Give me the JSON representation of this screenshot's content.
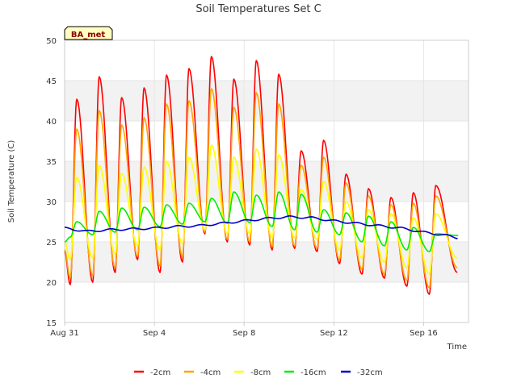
{
  "chart_data": {
    "type": "line",
    "title": "Soil Temperatures Set C",
    "xlabel": "Time",
    "ylabel": "Soil Temperature (C)",
    "badge": "BA_met",
    "ylim": [
      15,
      50
    ],
    "xlim": [
      "2023-08-31",
      "2023-09-18"
    ],
    "yticks": [
      15,
      20,
      25,
      30,
      35,
      40,
      45,
      50
    ],
    "xticks": [
      {
        "date": "2023-08-31",
        "label": "Aug 31"
      },
      {
        "date": "2023-09-04",
        "label": "Sep 4"
      },
      {
        "date": "2023-09-08",
        "label": "Sep 8"
      },
      {
        "date": "2023-09-12",
        "label": "Sep 12"
      },
      {
        "date": "2023-09-16",
        "label": "Sep 16"
      }
    ],
    "grid": true,
    "legend_position": "bottom",
    "start": "2023-08-31",
    "peak_time_of_day_hours": 13,
    "trough_time_of_day_hours": 6,
    "series": [
      {
        "name": "-2cm",
        "color": "#ff0000",
        "daily_max": [
          42.7,
          45.5,
          42.9,
          44.1,
          45.7,
          46.5,
          48.0,
          45.2,
          47.5,
          45.8,
          36.3,
          37.6,
          33.4,
          31.6,
          30.5,
          31.1,
          32.0
        ],
        "daily_min": [
          23.8,
          19.7,
          20.0,
          21.2,
          22.8,
          21.2,
          22.5,
          26.0,
          25.0,
          24.6,
          24.0,
          24.2,
          23.8,
          22.3,
          21.0,
          20.5,
          19.5,
          18.5,
          21.2
        ]
      },
      {
        "name": "-4cm",
        "color": "#ffa500",
        "daily_max": [
          39.0,
          41.3,
          39.5,
          40.4,
          42.1,
          42.5,
          44.0,
          41.7,
          43.5,
          42.1,
          34.5,
          35.5,
          32.3,
          30.7,
          29.6,
          29.8,
          30.7
        ],
        "daily_min": [
          24.0,
          20.5,
          20.8,
          21.8,
          23.2,
          22.0,
          23.2,
          26.2,
          25.3,
          25.0,
          24.4,
          24.5,
          24.2,
          22.8,
          21.6,
          21.0,
          20.2,
          19.3,
          21.8
        ]
      },
      {
        "name": "-8cm",
        "color": "#ffff00",
        "daily_max": [
          33.0,
          34.5,
          33.5,
          34.3,
          35.0,
          35.5,
          37.0,
          35.5,
          36.5,
          35.8,
          31.5,
          32.5,
          30.0,
          29.0,
          28.5,
          28.0,
          28.5
        ],
        "daily_min": [
          25.0,
          22.8,
          23.0,
          23.5,
          24.5,
          24.0,
          24.8,
          26.5,
          26.0,
          26.0,
          25.5,
          25.5,
          25.3,
          24.0,
          23.0,
          22.5,
          21.8,
          21.0,
          23.0
        ]
      },
      {
        "name": "-16cm",
        "color": "#00ee00",
        "daily_max": [
          27.5,
          28.8,
          29.2,
          29.3,
          29.6,
          29.8,
          30.4,
          31.2,
          30.8,
          31.2,
          30.9,
          29.0,
          28.6,
          28.2,
          27.5,
          26.8,
          26.0,
          25.8
        ],
        "daily_min": [
          25.0,
          25.6,
          25.9,
          26.2,
          26.5,
          26.9,
          27.2,
          27.5,
          27.3,
          27.4,
          26.9,
          26.5,
          26.2,
          25.9,
          25.0,
          24.5,
          24.0,
          23.8
        ]
      },
      {
        "name": "-32cm",
        "color": "#0000cd",
        "x": [
          "2023-08-31",
          "2023-09-01",
          "2023-09-02",
          "2023-09-03",
          "2023-09-04",
          "2023-09-05",
          "2023-09-06",
          "2023-09-07",
          "2023-09-08",
          "2023-09-09",
          "2023-09-10",
          "2023-09-11",
          "2023-09-12",
          "2023-09-13",
          "2023-09-14",
          "2023-09-15",
          "2023-09-16",
          "2023-09-17",
          "2023-09-17T12:00"
        ],
        "values": [
          26.7,
          26.3,
          26.5,
          26.6,
          26.7,
          26.9,
          27.0,
          27.3,
          27.6,
          27.9,
          28.1,
          28.0,
          27.6,
          27.3,
          27.0,
          26.7,
          26.2,
          25.8,
          25.5
        ]
      }
    ]
  }
}
